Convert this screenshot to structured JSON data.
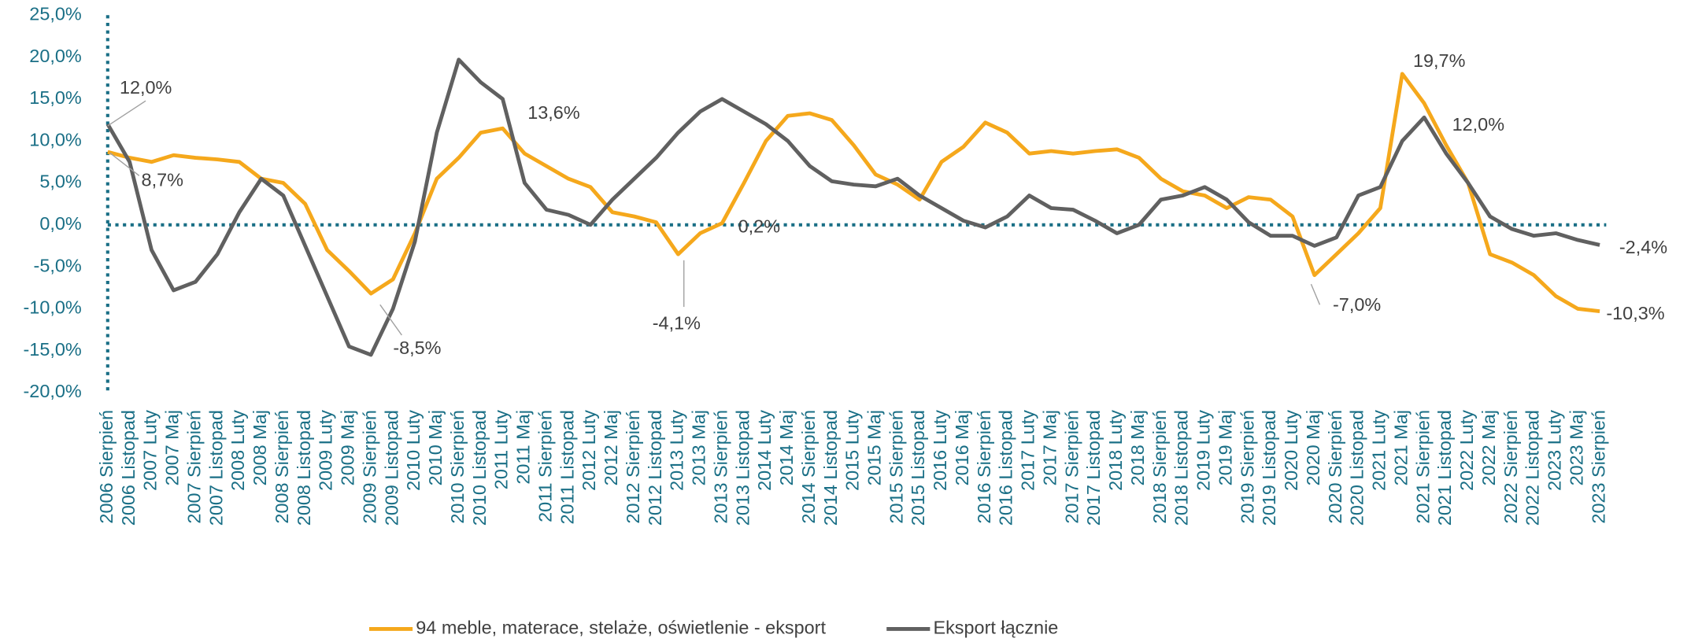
{
  "chart_data": {
    "type": "line",
    "categories": [
      "2006 Sierpień",
      "2006 Listopad",
      "2007 Luty",
      "2007 Maj",
      "2007 Sierpień",
      "2007 Listopad",
      "2008 Luty",
      "2008 Maj",
      "2008 Sierpień",
      "2008 Listopad",
      "2009 Luty",
      "2009 Maj",
      "2009 Sierpień",
      "2009 Listopad",
      "2010 Luty",
      "2010 Maj",
      "2010 Sierpień",
      "2010 Listopad",
      "2011 Luty",
      "2011 Maj",
      "2011 Sierpień",
      "2011 Listopad",
      "2012 Luty",
      "2012 Maj",
      "2012 Sierpień",
      "2012 Listopad",
      "2013 Luty",
      "2013 Maj",
      "2013 Sierpień",
      "2013 Listopad",
      "2014 Luty",
      "2014 Maj",
      "2014 Sierpień",
      "2014 Listopad",
      "2015 Luty",
      "2015 Maj",
      "2015 Sierpień",
      "2015 Listopad",
      "2016 Luty",
      "2016 Maj",
      "2016 Sierpień",
      "2016 Listopad",
      "2017 Luty",
      "2017 Maj",
      "2017 Sierpień",
      "2017 Listopad",
      "2018 Luty",
      "2018 Maj",
      "2018 Sierpień",
      "2018 Listopad",
      "2019 Luty",
      "2019 Maj",
      "2019 Sierpień",
      "2019 Listopad",
      "2020 Luty",
      "2020 Maj",
      "2020 Sierpień",
      "2020 Listopad",
      "2021 Luty",
      "2021 Maj",
      "2021 Sierpień",
      "2021 Listopad",
      "2022 Luty",
      "2022 Maj",
      "2022 Sierpień",
      "2022 Listopad",
      "2023 Luty",
      "2023 Maj",
      "2023 Sierpień"
    ],
    "series": [
      {
        "name": "94 meble, materace, stelaże, oświetlenie - eksport",
        "color": "#f5a81c",
        "values": [
          8.7,
          8.0,
          7.5,
          8.3,
          8.0,
          7.8,
          7.5,
          5.5,
          5.0,
          2.5,
          -3,
          -5.5,
          -8.2,
          -6.5,
          -1,
          5.5,
          8,
          11,
          11.5,
          8.5,
          7,
          5.5,
          4.5,
          1.5,
          1,
          0.3,
          -3.5,
          -1,
          0.2,
          5,
          10,
          13,
          13.3,
          12.5,
          9.5,
          6,
          4.8,
          3,
          7.5,
          9.3,
          12.2,
          11,
          8.5,
          8.8,
          8.5,
          8.8,
          9,
          8,
          5.5,
          4,
          3.5,
          2,
          3.3,
          3,
          1,
          -6,
          -3.5,
          -1,
          2,
          18,
          14.5,
          9.5,
          5,
          -3.5,
          -4.5,
          -6,
          -8.5,
          -10,
          -10.3
        ]
      },
      {
        "name": "Eksport łącznie",
        "color": "#606060",
        "values": [
          12.0,
          7.5,
          -3,
          -7.8,
          -6.8,
          -3.5,
          1.5,
          5.5,
          3.5,
          -2.5,
          -8.5,
          -14.5,
          -15.5,
          -10,
          -2,
          11,
          19.7,
          17,
          15,
          5,
          1.8,
          1.2,
          0,
          3,
          5.5,
          8,
          11,
          13.5,
          15,
          13.5,
          12,
          10,
          7,
          5.2,
          4.8,
          4.6,
          5.5,
          3.5,
          2,
          0.5,
          -0.3,
          1,
          3.5,
          2,
          1.8,
          0.5,
          -1,
          0,
          3,
          3.5,
          4.5,
          3,
          0.3,
          -1.3,
          -1.3,
          -2.5,
          -1.5,
          3.5,
          4.5,
          10,
          12.8,
          8.5,
          5,
          1,
          -0.5,
          -1.3,
          -1,
          -1.8,
          -2.4
        ]
      }
    ],
    "ylim": [
      -20,
      25
    ],
    "yticks": [
      {
        "value": -20,
        "label": "-20,0%"
      },
      {
        "value": -15,
        "label": "-15,0%"
      },
      {
        "value": -10,
        "label": "-10,0%"
      },
      {
        "value": -5,
        "label": "-5,0%"
      },
      {
        "value": 0,
        "label": "0,0%"
      },
      {
        "value": 5,
        "label": "5,0%"
      },
      {
        "value": 10,
        "label": "10,0%"
      },
      {
        "value": 15,
        "label": "15,0%"
      },
      {
        "value": 20,
        "label": "20,0%"
      },
      {
        "value": 25,
        "label": "25,0%"
      }
    ],
    "annotations": [
      "12,0%",
      "8,7%",
      "-8,5%",
      "13,6%",
      "-4,1%",
      "0,2%",
      "19,7%",
      "12,0%",
      "-7,0%",
      "-2,4%",
      "-10,3%"
    ],
    "legend": "bottom"
  }
}
